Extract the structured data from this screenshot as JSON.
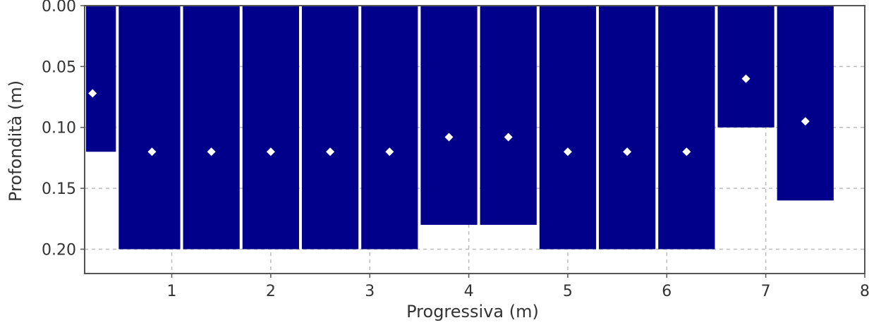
{
  "chart_data": {
    "type": "bar",
    "xlabel": "Progressiva (m)",
    "ylabel": "Profondità (m)",
    "xlim": [
      0.12,
      8
    ],
    "ylim": [
      0.0,
      0.22
    ],
    "y_inverted": true,
    "grid": true,
    "bar_color": "#00008b",
    "marker_color": "#ffffff",
    "x_ticks": [
      "1",
      "2",
      "3",
      "4",
      "5",
      "6",
      "7",
      "8"
    ],
    "y_ticks": [
      "0.00",
      "0.05",
      "0.10",
      "0.15",
      "0.20"
    ],
    "bars": [
      {
        "x0": 0.12,
        "x1": 0.45,
        "depth": 0.12
      },
      {
        "x0": 0.45,
        "x1": 1.1,
        "depth": 0.2
      },
      {
        "x0": 1.1,
        "x1": 1.7,
        "depth": 0.2
      },
      {
        "x0": 1.7,
        "x1": 2.3,
        "depth": 0.2
      },
      {
        "x0": 2.3,
        "x1": 2.9,
        "depth": 0.2
      },
      {
        "x0": 2.9,
        "x1": 3.5,
        "depth": 0.2
      },
      {
        "x0": 3.5,
        "x1": 4.1,
        "depth": 0.18
      },
      {
        "x0": 4.1,
        "x1": 4.7,
        "depth": 0.18
      },
      {
        "x0": 4.7,
        "x1": 5.3,
        "depth": 0.2
      },
      {
        "x0": 5.3,
        "x1": 5.9,
        "depth": 0.2
      },
      {
        "x0": 5.9,
        "x1": 6.5,
        "depth": 0.2
      },
      {
        "x0": 6.5,
        "x1": 7.1,
        "depth": 0.1
      },
      {
        "x0": 7.1,
        "x1": 7.7,
        "depth": 0.16
      }
    ],
    "points": [
      {
        "x": 0.2,
        "y": 0.072
      },
      {
        "x": 0.8,
        "y": 0.12
      },
      {
        "x": 1.4,
        "y": 0.12
      },
      {
        "x": 2.0,
        "y": 0.12
      },
      {
        "x": 2.6,
        "y": 0.12
      },
      {
        "x": 3.2,
        "y": 0.12
      },
      {
        "x": 3.8,
        "y": 0.108
      },
      {
        "x": 4.4,
        "y": 0.108
      },
      {
        "x": 5.0,
        "y": 0.12
      },
      {
        "x": 5.6,
        "y": 0.12
      },
      {
        "x": 6.2,
        "y": 0.12
      },
      {
        "x": 6.8,
        "y": 0.06
      },
      {
        "x": 7.4,
        "y": 0.095
      }
    ]
  }
}
